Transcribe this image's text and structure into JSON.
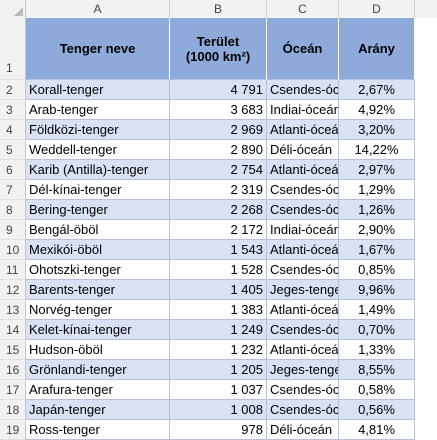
{
  "columns": [
    "A",
    "B",
    "C",
    "D"
  ],
  "header_row_number": "1",
  "headers": {
    "name": "Tenger neve",
    "area_line1": "Terület",
    "area_line2": "(1000 km²)",
    "ocean": "Óceán",
    "ratio": "Arány"
  },
  "rows": [
    {
      "n": "2",
      "name": "Korall-tenger",
      "area": "4 791",
      "ocean": "Csendes-óceán",
      "ratio": "2,67%"
    },
    {
      "n": "3",
      "name": "Arab-tenger",
      "area": "3 683",
      "ocean": "Indiai-óceán",
      "ratio": "4,92%"
    },
    {
      "n": "4",
      "name": "Földközi-tenger",
      "area": "2 969",
      "ocean": "Atlanti-óceán",
      "ratio": "3,20%"
    },
    {
      "n": "5",
      "name": "Weddell-tenger",
      "area": "2 890",
      "ocean": "Déli-óceán",
      "ratio": "14,22%"
    },
    {
      "n": "6",
      "name": "Karib (Antilla)-tenger",
      "area": "2 754",
      "ocean": "Atlanti-óceán",
      "ratio": "2,97%"
    },
    {
      "n": "7",
      "name": "Dél-kínai-tenger",
      "area": "2 319",
      "ocean": "Csendes-óceán",
      "ratio": "1,29%"
    },
    {
      "n": "8",
      "name": "Bering-tenger",
      "area": "2 268",
      "ocean": "Csendes-óceán",
      "ratio": "1,26%"
    },
    {
      "n": "9",
      "name": "Bengál-öböl",
      "area": "2 172",
      "ocean": "Indiai-óceán",
      "ratio": "2,90%"
    },
    {
      "n": "10",
      "name": "Mexikói-öböl",
      "area": "1 543",
      "ocean": "Atlanti-óceán",
      "ratio": "1,67%"
    },
    {
      "n": "11",
      "name": "Ohotszki-tenger",
      "area": "1 528",
      "ocean": "Csendes-óceán",
      "ratio": "0,85%"
    },
    {
      "n": "12",
      "name": "Barents-tenger",
      "area": "1 405",
      "ocean": "Jeges-tenger",
      "ratio": "9,96%"
    },
    {
      "n": "13",
      "name": "Norvég-tenger",
      "area": "1 383",
      "ocean": "Atlanti-óceán",
      "ratio": "1,49%"
    },
    {
      "n": "14",
      "name": "Kelet-kínai-tenger",
      "area": "1 249",
      "ocean": "Csendes-óceán",
      "ratio": "0,70%"
    },
    {
      "n": "15",
      "name": "Hudson-öböl",
      "area": "1 232",
      "ocean": "Atlanti-óceán",
      "ratio": "1,33%"
    },
    {
      "n": "16",
      "name": "Grönlandi-tenger",
      "area": "1 205",
      "ocean": "Jeges-tenger",
      "ratio": "8,55%"
    },
    {
      "n": "17",
      "name": "Arafura-tenger",
      "area": "1 037",
      "ocean": "Csendes-óceán",
      "ratio": "0,58%"
    },
    {
      "n": "18",
      "name": "Japán-tenger",
      "area": "1 008",
      "ocean": "Csendes-óceán",
      "ratio": "0,56%"
    },
    {
      "n": "19",
      "name": "Ross-tenger",
      "area": "978",
      "ocean": "Déli-óceán",
      "ratio": "4,81%"
    }
  ],
  "colors": {
    "header_fill": "#8eaadb",
    "band_fill": "#d9e1f2",
    "grid": "#d4d4d4"
  }
}
